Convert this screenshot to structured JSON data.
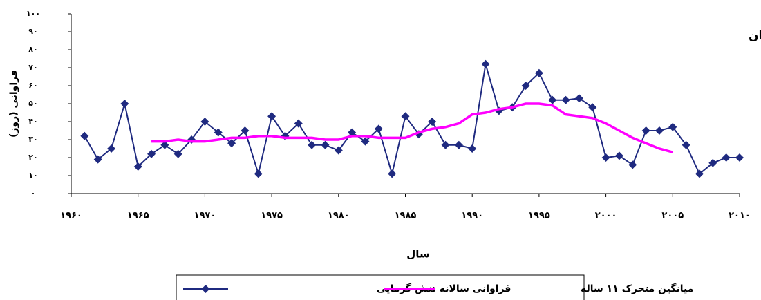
{
  "chart_data": {
    "type": "line",
    "title": "ب) تابستان",
    "xlabel": "سال",
    "ylabel": "فراوانی (روز)",
    "x": [
      1961,
      1962,
      1963,
      1964,
      1965,
      1966,
      1967,
      1968,
      1969,
      1970,
      1971,
      1972,
      1973,
      1974,
      1975,
      1976,
      1977,
      1978,
      1979,
      1980,
      1981,
      1982,
      1983,
      1984,
      1985,
      1986,
      1987,
      1988,
      1989,
      1990,
      1991,
      1992,
      1993,
      1994,
      1995,
      1996,
      1997,
      1998,
      1999,
      2000,
      2001,
      2002,
      2003,
      2004,
      2005,
      2006,
      2007,
      2008,
      2009,
      2010
    ],
    "series": [
      {
        "name": "فراوانی سالانه تنش گرمایی",
        "color": "#1f2a80",
        "marker": "diamond",
        "values": [
          32,
          19,
          25,
          50,
          15,
          22,
          27,
          22,
          30,
          40,
          34,
          28,
          35,
          11,
          43,
          32,
          39,
          27,
          27,
          24,
          34,
          29,
          36,
          11,
          43,
          33,
          40,
          27,
          27,
          25,
          72,
          46,
          48,
          60,
          67,
          52,
          52,
          53,
          48,
          20,
          21,
          16,
          35,
          35,
          37,
          27,
          11,
          17,
          20,
          20
        ]
      },
      {
        "name": "میانگین متحرک ۱۱ ساله",
        "color": "#ff00ff",
        "values": [
          null,
          null,
          null,
          null,
          null,
          29,
          29,
          30,
          29,
          29,
          30,
          31,
          31,
          32,
          32,
          31,
          31,
          31,
          30,
          30,
          32,
          32,
          31,
          31,
          31,
          34,
          36,
          37,
          39,
          44,
          45,
          47,
          48,
          50,
          50,
          49,
          44,
          43,
          42,
          39,
          35,
          31,
          28,
          25,
          23,
          null,
          null,
          null,
          null,
          null
        ]
      }
    ],
    "xlim": [
      1960,
      2010
    ],
    "xticks": [
      {
        "value": 1960,
        "label": "۱۹۶۰"
      },
      {
        "value": 1965,
        "label": "۱۹۶۵"
      },
      {
        "value": 1970,
        "label": "۱۹۷۰"
      },
      {
        "value": 1975,
        "label": "۱۹۷۵"
      },
      {
        "value": 1980,
        "label": "۱۹۸۰"
      },
      {
        "value": 1985,
        "label": "۱۹۸۵"
      },
      {
        "value": 1990,
        "label": "۱۹۹۰"
      },
      {
        "value": 1995,
        "label": "۱۹۹۵"
      },
      {
        "value": 2000,
        "label": "۲۰۰۰"
      },
      {
        "value": 2005,
        "label": "۲۰۰۵"
      },
      {
        "value": 2010,
        "label": "۲۰۱۰"
      }
    ],
    "ylim": [
      0,
      100
    ],
    "yticks": [
      {
        "value": 0,
        "label": "۰"
      },
      {
        "value": 10,
        "label": "۱۰"
      },
      {
        "value": 20,
        "label": "۲۰"
      },
      {
        "value": 30,
        "label": "۳۰"
      },
      {
        "value": 40,
        "label": "۴۰"
      },
      {
        "value": 50,
        "label": "۵۰"
      },
      {
        "value": 60,
        "label": "۶۰"
      },
      {
        "value": 70,
        "label": "۷۰"
      },
      {
        "value": 80,
        "label": "۸۰"
      },
      {
        "value": 90,
        "label": "۹۰"
      },
      {
        "value": 100,
        "label": "۱۰۰"
      }
    ],
    "legend": "bottom"
  }
}
